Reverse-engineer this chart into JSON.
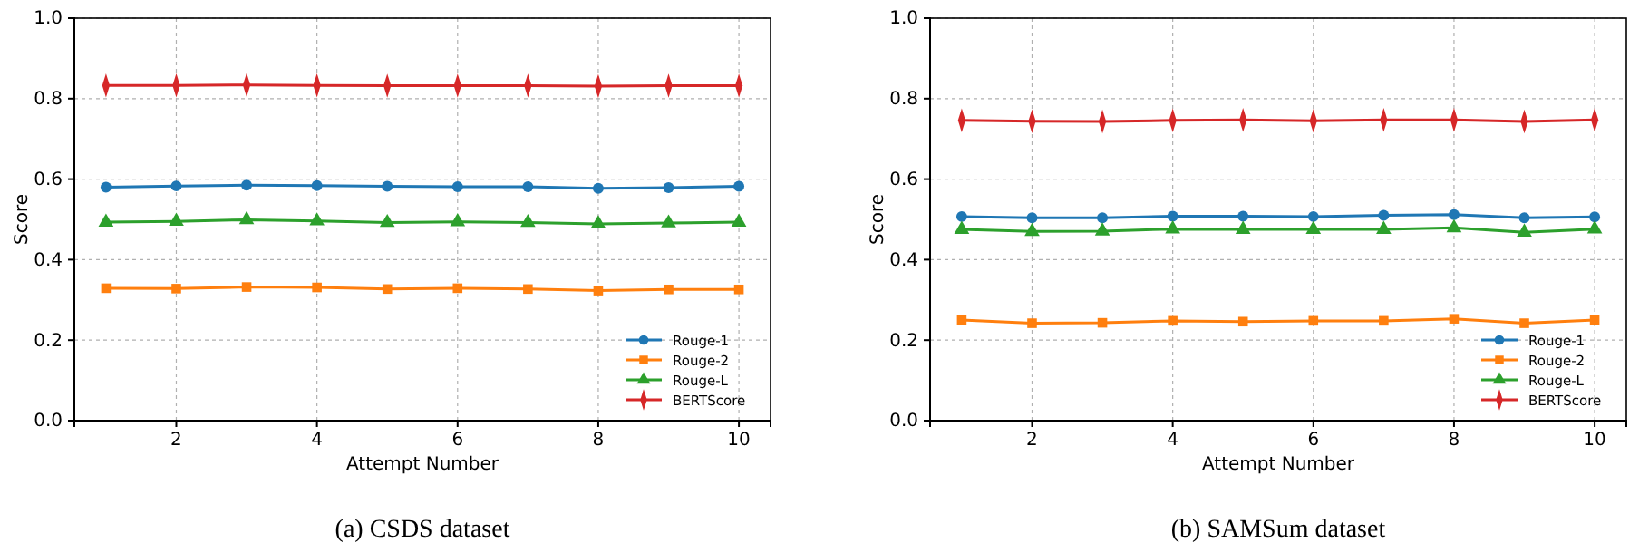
{
  "chart_data": [
    {
      "type": "line",
      "xlabel": "Attempt Number",
      "ylabel": "Score",
      "annotations": [
        "(a) CSDS dataset"
      ],
      "x": [
        1,
        2,
        3,
        4,
        5,
        6,
        7,
        8,
        9,
        10
      ],
      "xlim": [
        0.55,
        10.45
      ],
      "xticks": [
        2,
        4,
        6,
        8,
        10
      ],
      "ylim": [
        0,
        1
      ],
      "yticks": [
        {
          "value": 0,
          "label": "0.0"
        },
        {
          "value": 0.2,
          "label": "0.2"
        },
        {
          "value": 0.4,
          "label": "0.4"
        },
        {
          "value": 0.6,
          "label": "0.6"
        },
        {
          "value": 0.8,
          "label": "0.8"
        },
        {
          "value": 1,
          "label": "1.0"
        }
      ],
      "grid": true,
      "legend": "bottom right",
      "line_style": "solid",
      "series": [
        {
          "name": "Rouge-1",
          "color": "#1f77b4",
          "marker": "circle",
          "values": [
            0.58,
            0.583,
            0.585,
            0.584,
            0.582,
            0.581,
            0.581,
            0.577,
            0.579,
            0.582
          ]
        },
        {
          "name": "Rouge-2",
          "color": "#ff7f0e",
          "marker": "square",
          "values": [
            0.329,
            0.328,
            0.332,
            0.331,
            0.327,
            0.329,
            0.327,
            0.323,
            0.326,
            0.326
          ]
        },
        {
          "name": "Rouge-L",
          "color": "#2ca02c",
          "marker": "triangle",
          "values": [
            0.493,
            0.495,
            0.499,
            0.496,
            0.492,
            0.494,
            0.492,
            0.489,
            0.491,
            0.493
          ]
        },
        {
          "name": "BERTScore",
          "color": "#d62728",
          "marker": "diamond",
          "values": [
            0.833,
            0.833,
            0.834,
            0.833,
            0.832,
            0.832,
            0.832,
            0.831,
            0.832,
            0.832
          ]
        }
      ]
    },
    {
      "type": "line",
      "xlabel": "Attempt Number",
      "ylabel": "Score",
      "annotations": [
        "(b) SAMSum dataset"
      ],
      "x": [
        1,
        2,
        3,
        4,
        5,
        6,
        7,
        8,
        9,
        10
      ],
      "xlim": [
        0.55,
        10.45
      ],
      "xticks": [
        2,
        4,
        6,
        8,
        10
      ],
      "ylim": [
        0,
        1
      ],
      "yticks": [
        {
          "value": 0,
          "label": "0.0"
        },
        {
          "value": 0.2,
          "label": "0.2"
        },
        {
          "value": 0.4,
          "label": "0.4"
        },
        {
          "value": 0.6,
          "label": "0.6"
        },
        {
          "value": 0.8,
          "label": "0.8"
        },
        {
          "value": 1,
          "label": "1.0"
        }
      ],
      "grid": true,
      "legend": "bottom right",
      "line_style": "solid",
      "series": [
        {
          "name": "Rouge-1",
          "color": "#1f77b4",
          "marker": "circle",
          "values": [
            0.507,
            0.504,
            0.504,
            0.508,
            0.508,
            0.507,
            0.51,
            0.512,
            0.504,
            0.506
          ]
        },
        {
          "name": "Rouge-2",
          "color": "#ff7f0e",
          "marker": "square",
          "values": [
            0.25,
            0.242,
            0.243,
            0.248,
            0.246,
            0.248,
            0.248,
            0.253,
            0.242,
            0.25
          ]
        },
        {
          "name": "Rouge-L",
          "color": "#2ca02c",
          "marker": "triangle",
          "values": [
            0.475,
            0.47,
            0.471,
            0.476,
            0.475,
            0.475,
            0.475,
            0.479,
            0.468,
            0.476
          ]
        },
        {
          "name": "BERTScore",
          "color": "#d62728",
          "marker": "diamond",
          "values": [
            0.746,
            0.744,
            0.743,
            0.746,
            0.747,
            0.745,
            0.747,
            0.747,
            0.743,
            0.747
          ]
        }
      ]
    }
  ]
}
